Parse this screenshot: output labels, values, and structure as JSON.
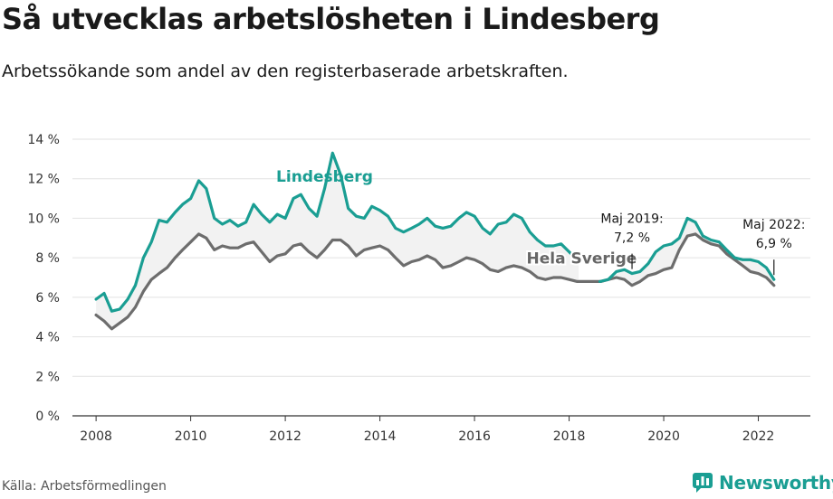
{
  "header": {
    "title": "Så utvecklas arbetslösheten i Lindesberg",
    "subtitle": "Arbetssökande som andel av den registerbaserade arbetskraften."
  },
  "footer": {
    "source": "Källa: Arbetsförmedlingen",
    "brand": "Newsworthy",
    "brand_icon": "chart-bubble-icon"
  },
  "colors": {
    "lindesberg": "#1a9e93",
    "sverige": "#6d6d6d",
    "band": "#f2f2f2",
    "grid": "#e2e2e2"
  },
  "chart_data": {
    "type": "line",
    "title": "Så utvecklas arbetslösheten i Lindesberg",
    "subtitle": "Arbetssökande som andel av den registerbaserade arbetskraften.",
    "xlim": [
      2007.5,
      2023.1
    ],
    "ylim": [
      0,
      14
    ],
    "x_ticks": [
      2008,
      2010,
      2012,
      2014,
      2016,
      2018,
      2020,
      2022
    ],
    "x_tick_labels": [
      "2008",
      "2010",
      "2012",
      "2014",
      "2016",
      "2018",
      "2020",
      "2022"
    ],
    "y_ticks": [
      0,
      2,
      4,
      6,
      8,
      10,
      12,
      14
    ],
    "y_tick_labels": [
      "0 %",
      "2 %",
      "4 %",
      "6 %",
      "8 %",
      "10 %",
      "12 %",
      "14 %"
    ],
    "grid": true,
    "series": [
      {
        "name": "Lindesberg",
        "points": [
          [
            2008.0,
            5.9
          ],
          [
            2008.17,
            6.2
          ],
          [
            2008.33,
            5.3
          ],
          [
            2008.5,
            5.4
          ],
          [
            2008.67,
            5.9
          ],
          [
            2008.83,
            6.6
          ],
          [
            2009.0,
            8.0
          ],
          [
            2009.17,
            8.8
          ],
          [
            2009.33,
            9.9
          ],
          [
            2009.5,
            9.8
          ],
          [
            2009.67,
            10.3
          ],
          [
            2009.83,
            10.7
          ],
          [
            2010.0,
            11.0
          ],
          [
            2010.17,
            11.9
          ],
          [
            2010.33,
            11.5
          ],
          [
            2010.5,
            10.0
          ],
          [
            2010.67,
            9.7
          ],
          [
            2010.83,
            9.9
          ],
          [
            2011.0,
            9.6
          ],
          [
            2011.17,
            9.8
          ],
          [
            2011.33,
            10.7
          ],
          [
            2011.5,
            10.2
          ],
          [
            2011.67,
            9.8
          ],
          [
            2011.83,
            10.2
          ],
          [
            2012.0,
            10.0
          ],
          [
            2012.17,
            11.0
          ],
          [
            2012.33,
            11.2
          ],
          [
            2012.5,
            10.5
          ],
          [
            2012.67,
            10.1
          ],
          [
            2012.83,
            11.5
          ],
          [
            2013.0,
            13.3
          ],
          [
            2013.17,
            12.2
          ],
          [
            2013.33,
            10.5
          ],
          [
            2013.5,
            10.1
          ],
          [
            2013.67,
            10.0
          ],
          [
            2013.83,
            10.6
          ],
          [
            2014.0,
            10.4
          ],
          [
            2014.17,
            10.1
          ],
          [
            2014.33,
            9.5
          ],
          [
            2014.5,
            9.3
          ],
          [
            2014.67,
            9.5
          ],
          [
            2014.83,
            9.7
          ],
          [
            2015.0,
            10.0
          ],
          [
            2015.17,
            9.6
          ],
          [
            2015.33,
            9.5
          ],
          [
            2015.5,
            9.6
          ],
          [
            2015.67,
            10.0
          ],
          [
            2015.83,
            10.3
          ],
          [
            2016.0,
            10.1
          ],
          [
            2016.17,
            9.5
          ],
          [
            2016.33,
            9.2
          ],
          [
            2016.5,
            9.7
          ],
          [
            2016.67,
            9.8
          ],
          [
            2016.83,
            10.2
          ],
          [
            2017.0,
            10.0
          ],
          [
            2017.17,
            9.3
          ],
          [
            2017.33,
            8.9
          ],
          [
            2017.5,
            8.6
          ],
          [
            2017.67,
            8.6
          ],
          [
            2017.83,
            8.7
          ],
          [
            2018.0,
            8.3
          ],
          [
            2018.2,
            7.8
          ],
          [
            2018.65,
            6.8
          ],
          [
            2018.83,
            6.9
          ],
          [
            2019.0,
            7.3
          ],
          [
            2019.17,
            7.4
          ],
          [
            2019.33,
            7.2
          ],
          [
            2019.5,
            7.3
          ],
          [
            2019.67,
            7.7
          ],
          [
            2019.83,
            8.3
          ],
          [
            2020.0,
            8.6
          ],
          [
            2020.17,
            8.7
          ],
          [
            2020.33,
            9.0
          ],
          [
            2020.5,
            10.0
          ],
          [
            2020.67,
            9.8
          ],
          [
            2020.83,
            9.1
          ],
          [
            2021.0,
            8.9
          ],
          [
            2021.17,
            8.8
          ],
          [
            2021.33,
            8.4
          ],
          [
            2021.5,
            8.0
          ],
          [
            2021.67,
            7.9
          ],
          [
            2021.83,
            7.9
          ],
          [
            2022.0,
            7.8
          ],
          [
            2022.17,
            7.5
          ],
          [
            2022.33,
            6.9
          ]
        ]
      },
      {
        "name": "Hela Sverige",
        "points": [
          [
            2008.0,
            5.1
          ],
          [
            2008.17,
            4.8
          ],
          [
            2008.33,
            4.4
          ],
          [
            2008.5,
            4.7
          ],
          [
            2008.67,
            5.0
          ],
          [
            2008.83,
            5.5
          ],
          [
            2009.0,
            6.3
          ],
          [
            2009.17,
            6.9
          ],
          [
            2009.33,
            7.2
          ],
          [
            2009.5,
            7.5
          ],
          [
            2009.67,
            8.0
          ],
          [
            2009.83,
            8.4
          ],
          [
            2010.0,
            8.8
          ],
          [
            2010.17,
            9.2
          ],
          [
            2010.33,
            9.0
          ],
          [
            2010.5,
            8.4
          ],
          [
            2010.67,
            8.6
          ],
          [
            2010.83,
            8.5
          ],
          [
            2011.0,
            8.5
          ],
          [
            2011.17,
            8.7
          ],
          [
            2011.33,
            8.8
          ],
          [
            2011.5,
            8.3
          ],
          [
            2011.67,
            7.8
          ],
          [
            2011.83,
            8.1
          ],
          [
            2012.0,
            8.2
          ],
          [
            2012.17,
            8.6
          ],
          [
            2012.33,
            8.7
          ],
          [
            2012.5,
            8.3
          ],
          [
            2012.67,
            8.0
          ],
          [
            2012.83,
            8.4
          ],
          [
            2013.0,
            8.9
          ],
          [
            2013.17,
            8.9
          ],
          [
            2013.33,
            8.6
          ],
          [
            2013.5,
            8.1
          ],
          [
            2013.67,
            8.4
          ],
          [
            2013.83,
            8.5
          ],
          [
            2014.0,
            8.6
          ],
          [
            2014.17,
            8.4
          ],
          [
            2014.33,
            8.0
          ],
          [
            2014.5,
            7.6
          ],
          [
            2014.67,
            7.8
          ],
          [
            2014.83,
            7.9
          ],
          [
            2015.0,
            8.1
          ],
          [
            2015.17,
            7.9
          ],
          [
            2015.33,
            7.5
          ],
          [
            2015.5,
            7.6
          ],
          [
            2015.67,
            7.8
          ],
          [
            2015.83,
            8.0
          ],
          [
            2016.0,
            7.9
          ],
          [
            2016.17,
            7.7
          ],
          [
            2016.33,
            7.4
          ],
          [
            2016.5,
            7.3
          ],
          [
            2016.67,
            7.5
          ],
          [
            2016.83,
            7.6
          ],
          [
            2017.0,
            7.5
          ],
          [
            2017.17,
            7.3
          ],
          [
            2017.33,
            7.0
          ],
          [
            2017.5,
            6.9
          ],
          [
            2017.67,
            7.0
          ],
          [
            2017.83,
            7.0
          ],
          [
            2018.0,
            6.9
          ],
          [
            2018.17,
            6.8
          ],
          [
            2018.33,
            6.8
          ],
          [
            2018.5,
            6.8
          ],
          [
            2018.67,
            6.8
          ],
          [
            2018.83,
            6.9
          ],
          [
            2019.0,
            7.0
          ],
          [
            2019.17,
            6.9
          ],
          [
            2019.33,
            6.6
          ],
          [
            2019.5,
            6.8
          ],
          [
            2019.67,
            7.1
          ],
          [
            2019.83,
            7.2
          ],
          [
            2020.0,
            7.4
          ],
          [
            2020.17,
            7.5
          ],
          [
            2020.33,
            8.4
          ],
          [
            2020.5,
            9.1
          ],
          [
            2020.67,
            9.2
          ],
          [
            2020.83,
            8.9
          ],
          [
            2021.0,
            8.7
          ],
          [
            2021.17,
            8.6
          ],
          [
            2021.33,
            8.2
          ],
          [
            2021.5,
            7.9
          ],
          [
            2021.67,
            7.6
          ],
          [
            2021.83,
            7.3
          ],
          [
            2022.0,
            7.2
          ],
          [
            2022.17,
            7.0
          ],
          [
            2022.33,
            6.6
          ]
        ]
      }
    ],
    "series_labels": [
      {
        "text": "Lindesberg",
        "x": 2012.83,
        "y": 11.85,
        "series": 0
      },
      {
        "text": "Hela Sverige",
        "x": 2017.1,
        "y": 7.7,
        "series": 1
      }
    ],
    "annotations": [
      {
        "lines": [
          "Maj 2019:",
          "7,2 %"
        ],
        "x": 2019.33,
        "y": 7.2
      },
      {
        "lines": [
          "Maj 2022:",
          "6,9 %"
        ],
        "x": 2022.33,
        "y": 6.9
      }
    ]
  }
}
